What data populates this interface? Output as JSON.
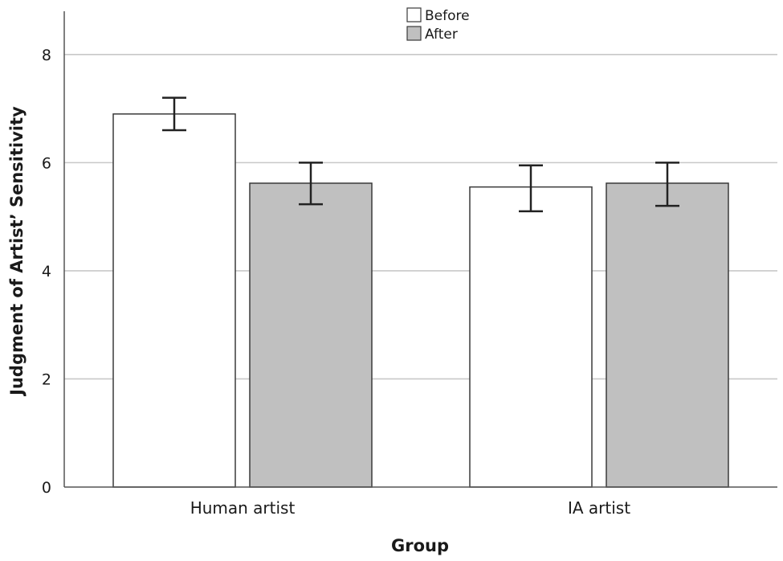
{
  "chart_data": {
    "type": "bar",
    "categories": [
      "Human artist",
      "IA artist"
    ],
    "series": [
      {
        "name": "Before",
        "values": [
          6.9,
          5.55
        ],
        "error": [
          [
            6.6,
            7.2
          ],
          [
            5.1,
            5.95
          ]
        ],
        "color": "#ffffff"
      },
      {
        "name": "After",
        "values": [
          5.62,
          5.62
        ],
        "error": [
          [
            5.23,
            6.0
          ],
          [
            5.2,
            6.0
          ]
        ],
        "color": "#c0c0c0"
      }
    ],
    "xlabel": "Group",
    "ylabel": "Judgment of Artist’ Sensitivity",
    "ylim": [
      0,
      8.8
    ],
    "yticks": [
      0,
      2,
      4,
      6,
      8
    ],
    "grid": true,
    "legend": "top-center"
  }
}
